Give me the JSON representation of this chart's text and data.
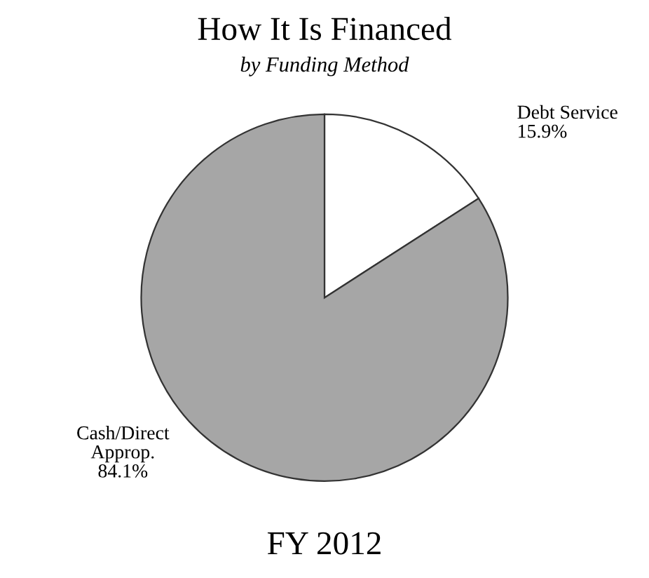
{
  "chart_data": {
    "type": "pie",
    "title": "How It Is Financed",
    "subtitle": "by Funding Method",
    "categories": [
      "Debt Service",
      "Cash/Direct\nApprop."
    ],
    "values": [
      15.9,
      84.1
    ],
    "colors": [
      "#ffffff",
      "#a6a6a6"
    ],
    "value_labels": [
      "15.9%",
      "84.1%"
    ],
    "annotations": [
      "FY 2012"
    ]
  }
}
